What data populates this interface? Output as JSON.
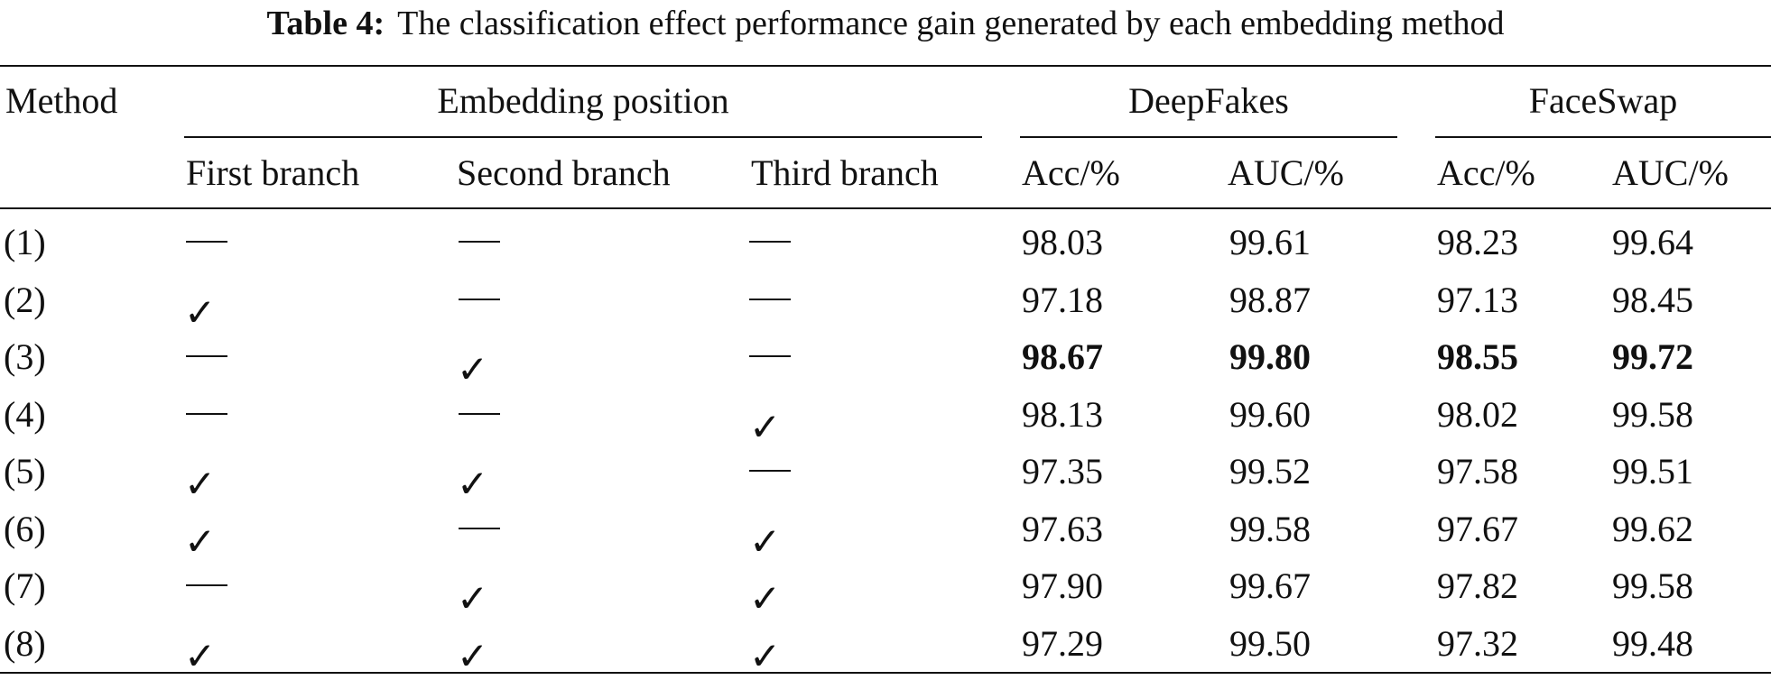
{
  "caption": {
    "label": "Table 4:",
    "text": "The classification effect performance gain generated by each embedding method"
  },
  "header": {
    "method": "Method",
    "embedding_position": "Embedding position",
    "deepfakes": "DeepFakes",
    "faceswap": "FaceSwap",
    "first_branch": "First branch",
    "second_branch": "Second branch",
    "third_branch": "Third branch",
    "acc": "Acc/%",
    "auc": "AUC/%"
  },
  "rows": [
    {
      "method": "(1)",
      "first": false,
      "second": false,
      "third": false,
      "df_acc": "98.03",
      "df_auc": "99.61",
      "fs_acc": "98.23",
      "fs_auc": "99.64",
      "bold": false
    },
    {
      "method": "(2)",
      "first": true,
      "second": false,
      "third": false,
      "df_acc": "97.18",
      "df_auc": "98.87",
      "fs_acc": "97.13",
      "fs_auc": "98.45",
      "bold": false
    },
    {
      "method": "(3)",
      "first": false,
      "second": true,
      "third": false,
      "df_acc": "98.67",
      "df_auc": "99.80",
      "fs_acc": "98.55",
      "fs_auc": "99.72",
      "bold": true
    },
    {
      "method": "(4)",
      "first": false,
      "second": false,
      "third": true,
      "df_acc": "98.13",
      "df_auc": "99.60",
      "fs_acc": "98.02",
      "fs_auc": "99.58",
      "bold": false
    },
    {
      "method": "(5)",
      "first": true,
      "second": true,
      "third": false,
      "df_acc": "97.35",
      "df_auc": "99.52",
      "fs_acc": "97.58",
      "fs_auc": "99.51",
      "bold": false
    },
    {
      "method": "(6)",
      "first": true,
      "second": false,
      "third": true,
      "df_acc": "97.63",
      "df_auc": "99.58",
      "fs_acc": "97.67",
      "fs_auc": "99.62",
      "bold": false
    },
    {
      "method": "(7)",
      "first": false,
      "second": true,
      "third": true,
      "df_acc": "97.90",
      "df_auc": "99.67",
      "fs_acc": "97.82",
      "fs_auc": "99.58",
      "bold": false
    },
    {
      "method": "(8)",
      "first": true,
      "second": true,
      "third": true,
      "df_acc": "97.29",
      "df_auc": "99.50",
      "fs_acc": "97.32",
      "fs_auc": "99.48",
      "bold": false
    }
  ],
  "check_glyph": "✓"
}
